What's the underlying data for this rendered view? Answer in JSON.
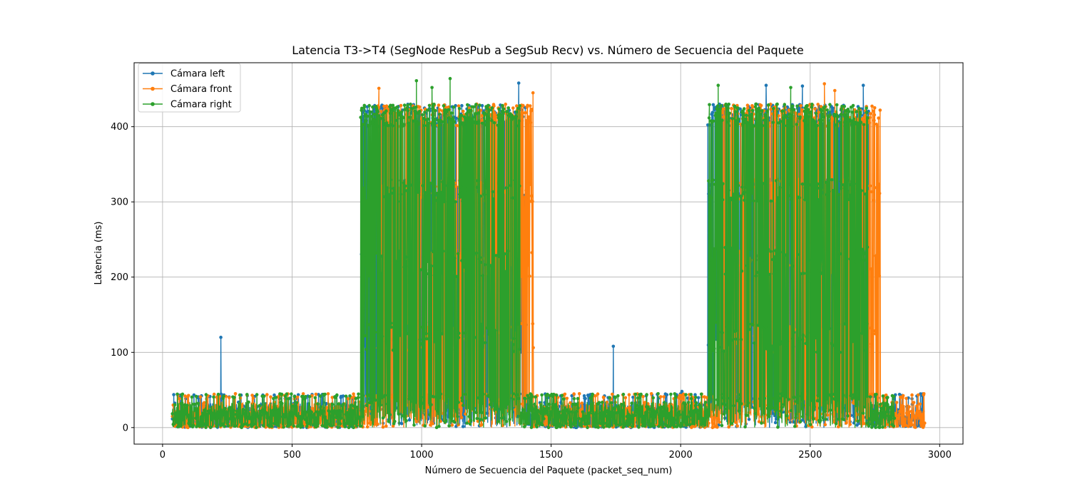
{
  "chart_data": {
    "type": "line",
    "title": "Latencia T3->T4 (SegNode ResPub a SegSub Recv) vs. Número de Secuencia del Paquete",
    "xlabel": "Número de Secuencia del Paquete (packet_seq_num)",
    "ylabel": "Latencia (ms)",
    "xlim": [
      -110,
      3090
    ],
    "ylim": [
      -22,
      485
    ],
    "xticks": [
      0,
      500,
      1000,
      1500,
      2000,
      2500,
      3000
    ],
    "yticks": [
      0,
      100,
      200,
      300,
      400
    ],
    "grid": true,
    "legend_position": "top-left",
    "markers": true,
    "series": [
      {
        "name": "Cámara left",
        "color": "#1f77b4",
        "x_range": [
          38,
          2937
        ],
        "baseline_range_ms": [
          0,
          45
        ],
        "burst_regions": [
          [
            765,
            1405
          ],
          [
            2105,
            2725
          ]
        ],
        "burst_range_ms": [
          0,
          460
        ],
        "spikes": [
          {
            "x": 225,
            "y": 120
          },
          {
            "x": 1740,
            "y": 108
          },
          {
            "x": 1375,
            "y": 458
          },
          {
            "x": 2470,
            "y": 454
          },
          {
            "x": 2705,
            "y": 455
          },
          {
            "x": 2330,
            "y": 455
          },
          {
            "x": 2005,
            "y": 48
          }
        ]
      },
      {
        "name": "Cámara front",
        "color": "#ff7f0e",
        "x_range": [
          38,
          2943
        ],
        "baseline_range_ms": [
          0,
          45
        ],
        "burst_regions": [
          [
            830,
            1432
          ],
          [
            2148,
            2770
          ]
        ],
        "burst_range_ms": [
          0,
          458
        ],
        "spikes": [
          {
            "x": 835,
            "y": 451
          },
          {
            "x": 1430,
            "y": 445
          },
          {
            "x": 2555,
            "y": 457
          },
          {
            "x": 2595,
            "y": 448
          },
          {
            "x": 2770,
            "y": 422
          }
        ]
      },
      {
        "name": "Cámara right",
        "color": "#2ca02c",
        "x_range": [
          38,
          2825
        ],
        "baseline_range_ms": [
          0,
          45
        ],
        "burst_regions": [
          [
            765,
            1380
          ],
          [
            2108,
            2722
          ]
        ],
        "burst_range_ms": [
          0,
          465
        ],
        "spikes": [
          {
            "x": 980,
            "y": 461
          },
          {
            "x": 1110,
            "y": 464
          },
          {
            "x": 1040,
            "y": 452
          },
          {
            "x": 2145,
            "y": 455
          },
          {
            "x": 2425,
            "y": 452
          }
        ]
      }
    ]
  }
}
